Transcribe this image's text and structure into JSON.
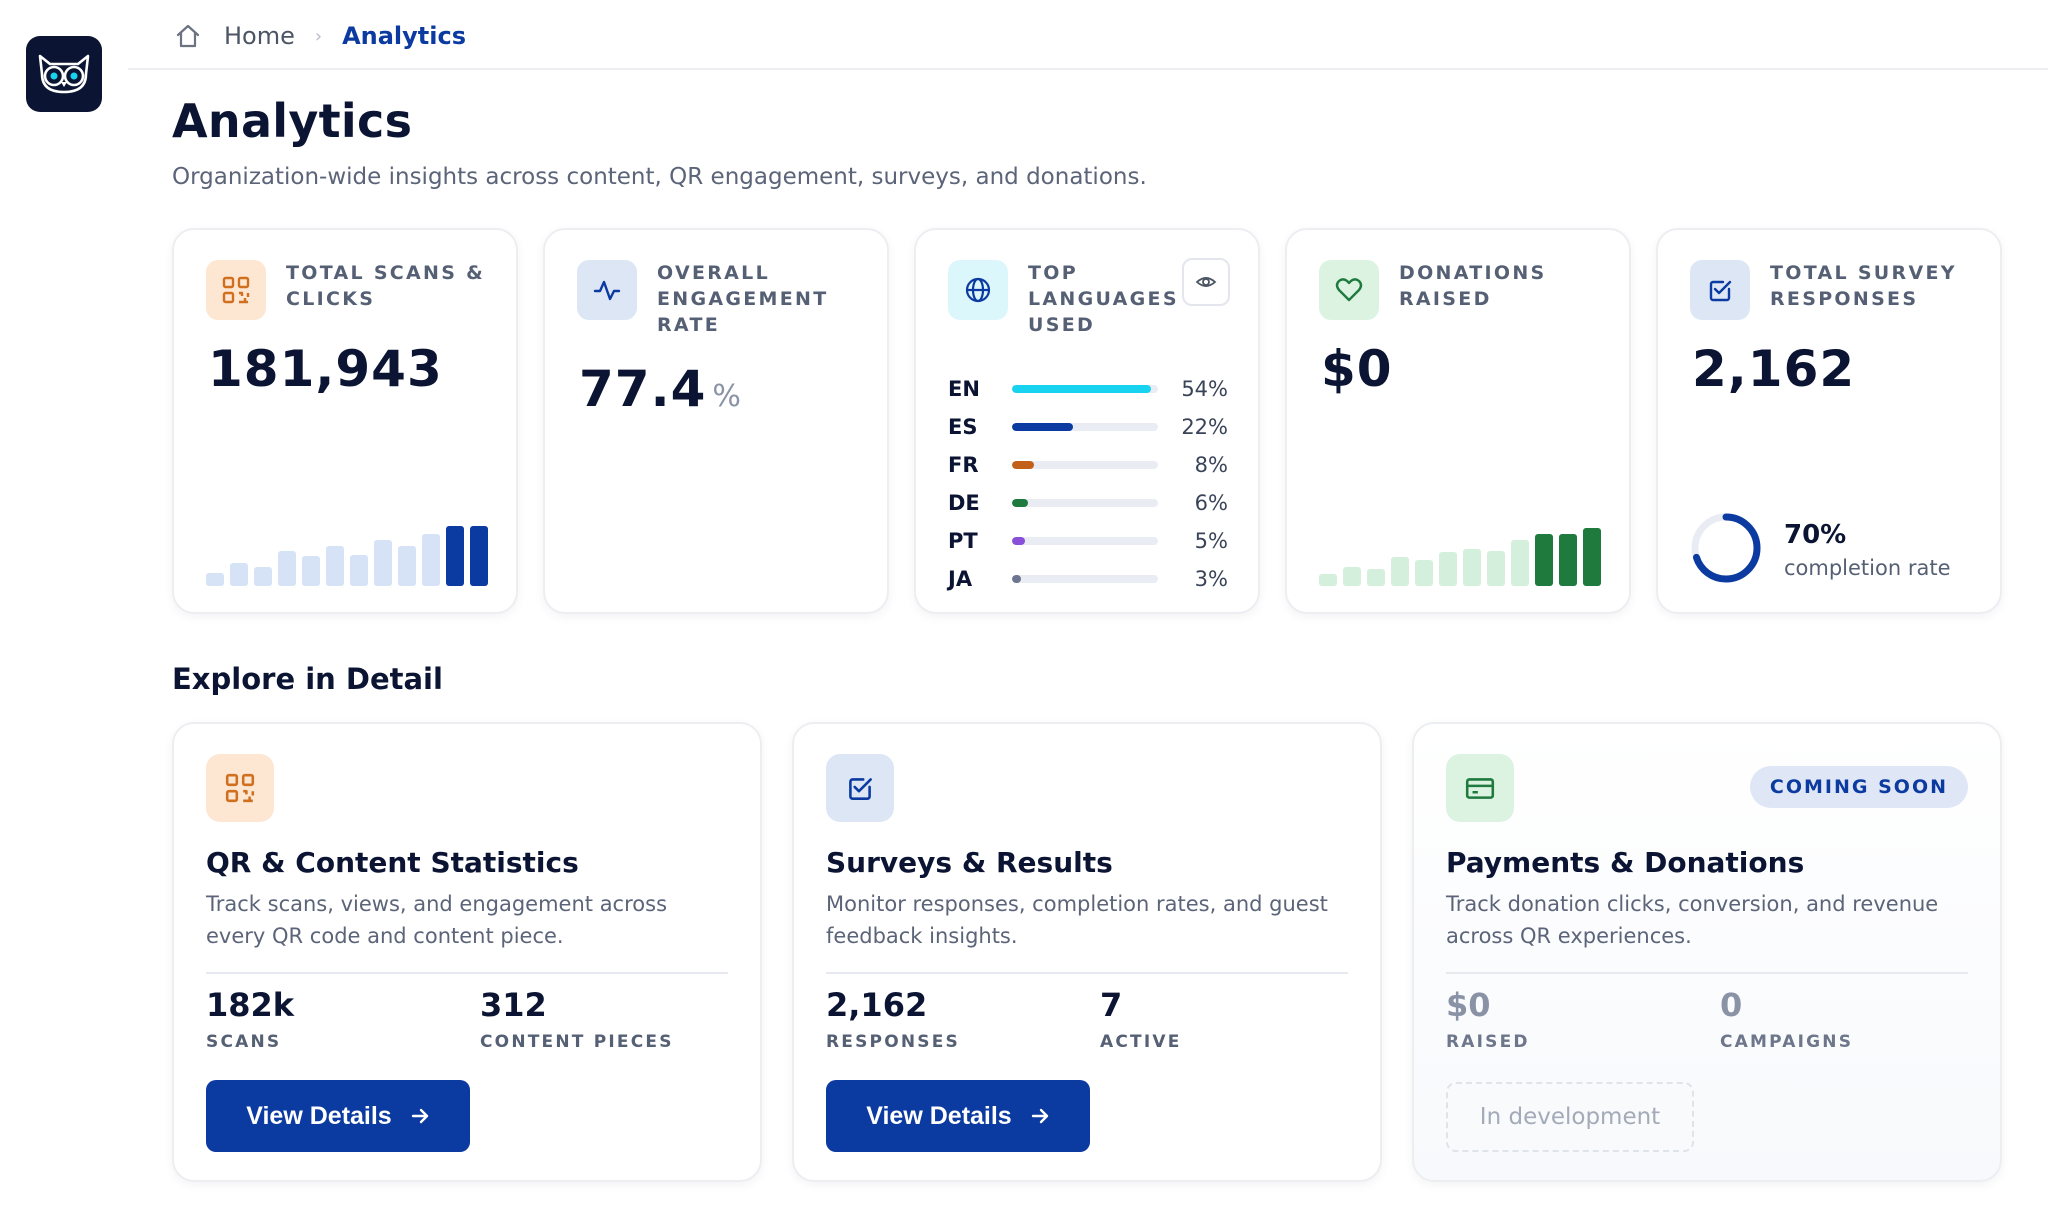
{
  "breadcrumb": {
    "home": "Home",
    "separator": "›",
    "current": "Analytics"
  },
  "page": {
    "title": "Analytics",
    "subtitle": "Organization-wide insights across content, QR engagement, surveys, and donations."
  },
  "stats": {
    "scans": {
      "label": "TOTAL SCANS & CLICKS",
      "value": "181,943",
      "icon": "qr-code-icon",
      "trend": [
        0.22,
        0.38,
        0.32,
        0.58,
        0.5,
        0.66,
        0.52,
        0.76,
        0.66,
        0.86,
        1.0,
        1.0
      ],
      "trend_colors": [
        "#d6e2f6",
        "#0b3aa0"
      ]
    },
    "engagement": {
      "label": "OVERALL ENGAGEMENT RATE",
      "value": "77.4",
      "unit": "%",
      "icon": "activity-icon"
    },
    "languages": {
      "label": "TOP LANGUAGES USED",
      "icon": "globe-icon",
      "action_icon": "eye-icon",
      "items": [
        {
          "code": "EN",
          "pct": "54%",
          "fill": 0.95,
          "color": "#18d3ef"
        },
        {
          "code": "ES",
          "pct": "22%",
          "fill": 0.42,
          "color": "#0b3aa0"
        },
        {
          "code": "FR",
          "pct": "8%",
          "fill": 0.15,
          "color": "#c2601a"
        },
        {
          "code": "DE",
          "pct": "6%",
          "fill": 0.11,
          "color": "#1f7a3e"
        },
        {
          "code": "PT",
          "pct": "5%",
          "fill": 0.09,
          "color": "#8a4fd8"
        },
        {
          "code": "JA",
          "pct": "3%",
          "fill": 0.06,
          "color": "#6d7590"
        }
      ]
    },
    "donations": {
      "label": "DONATIONS RAISED",
      "value": "$0",
      "icon": "heart-icon",
      "trend": [
        0.2,
        0.32,
        0.28,
        0.48,
        0.44,
        0.56,
        0.62,
        0.58,
        0.76,
        0.86,
        0.86,
        0.96
      ],
      "trend_colors": [
        "#d4efdb",
        "#1f7a3e"
      ]
    },
    "surveys": {
      "label": "TOTAL SURVEY RESPONSES",
      "value": "2,162",
      "icon": "check-square-icon",
      "completion": 0.7,
      "completion_pct": "70%",
      "completion_label": "completion rate"
    }
  },
  "section": {
    "title": "Explore in Detail"
  },
  "details": [
    {
      "icon": "qr-code-icon",
      "title": "QR & Content Statistics",
      "description": "Track scans, views, and engagement across every QR code and content piece.",
      "metrics": [
        {
          "value": "182k",
          "label": "SCANS"
        },
        {
          "value": "312",
          "label": "CONTENT PIECES"
        }
      ],
      "button": "View Details",
      "button_icon": "arrow-right-icon"
    },
    {
      "icon": "check-square-icon",
      "title": "Surveys & Results",
      "description": "Monitor responses, completion rates, and guest feedback insights.",
      "metrics": [
        {
          "value": "2,162",
          "label": "RESPONSES"
        },
        {
          "value": "7",
          "label": "ACTIVE"
        }
      ],
      "button": "View Details",
      "button_icon": "arrow-right-icon"
    },
    {
      "icon": "credit-card-icon",
      "title": "Payments & Donations",
      "badge": "COMING SOON",
      "description": "Track donation clicks, conversion, and revenue across QR experiences.",
      "metrics": [
        {
          "value": "$0",
          "label": "RAISED"
        },
        {
          "value": "0",
          "label": "CAMPAIGNS"
        }
      ],
      "status": "In development"
    }
  ]
}
